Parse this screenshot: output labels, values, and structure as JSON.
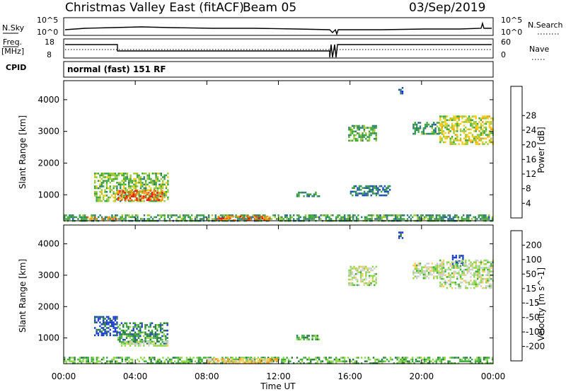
{
  "header": {
    "title": "Christmas Valley East (fitACF)",
    "beam": "Beam 05",
    "date": "03/Sep/2019"
  },
  "top_panels": {
    "nsky_label": "N.Sky",
    "nsearch_label": "N.Search",
    "nsky_ticks": [
      "10^5",
      "10^0"
    ],
    "nsky_right_ticks": [
      "10^5",
      "10^0"
    ],
    "freq_label": "Freq.",
    "freq_unit": "[MHz]",
    "freq_ticks": [
      "18",
      "8"
    ],
    "nave_label": "Nave",
    "nave_ticks": [
      "60",
      "0"
    ],
    "cpid_label": "CPID",
    "cpid_text": "normal (fast) 151 RF"
  },
  "chart_data": [
    {
      "type": "heatmap",
      "name": "power-panel",
      "ylabel": "Slant Range [km]",
      "xlabel": "",
      "xlim": [
        0,
        24
      ],
      "ylim": [
        180,
        4600
      ],
      "yticks": [
        1000,
        2000,
        3000,
        4000
      ],
      "colorbar": {
        "label": "Power [dB]",
        "ticks": [
          "4",
          "8",
          "12",
          "16",
          "20",
          "24",
          "28"
        ],
        "colors": [
          "#0a14e8",
          "#1f4fb0",
          "#2f7f6a",
          "#3da63a",
          "#9cc83a",
          "#f5cc10",
          "#f39a10",
          "#ee5a10",
          "#e01a10"
        ]
      },
      "regions": [
        {
          "t0": 1.7,
          "t1": 5.8,
          "r0": 800,
          "r1": 1700,
          "level": 0.45
        },
        {
          "t0": 3.0,
          "t1": 5.5,
          "r0": 850,
          "r1": 1150,
          "level": 0.85
        },
        {
          "t0": 0.0,
          "t1": 24.0,
          "r0": 200,
          "r1": 380,
          "level": 0.35
        },
        {
          "t0": 8.5,
          "t1": 11.5,
          "r0": 210,
          "r1": 340,
          "level": 0.8
        },
        {
          "t0": 1.2,
          "t1": 3.0,
          "r0": 220,
          "r1": 320,
          "level": 0.75
        },
        {
          "t0": 13.0,
          "t1": 14.3,
          "r0": 950,
          "r1": 1100,
          "level": 0.3
        },
        {
          "t0": 15.9,
          "t1": 17.5,
          "r0": 2700,
          "r1": 3200,
          "level": 0.4
        },
        {
          "t0": 16.0,
          "t1": 18.2,
          "r0": 1000,
          "r1": 1300,
          "level": 0.25
        },
        {
          "t0": 18.7,
          "t1": 18.9,
          "r0": 4200,
          "r1": 4400,
          "level": 0.2
        },
        {
          "t0": 19.5,
          "t1": 21.2,
          "r0": 2900,
          "r1": 3300,
          "level": 0.35
        },
        {
          "t0": 21.0,
          "t1": 24.0,
          "r0": 2600,
          "r1": 3500,
          "level": 0.55
        }
      ]
    },
    {
      "type": "heatmap",
      "name": "velocity-panel",
      "ylabel": "Slant Range [km]",
      "xlabel": "Time UT",
      "xlim": [
        0,
        24
      ],
      "ylim": [
        180,
        4600
      ],
      "xticks": [
        "00:00",
        "04:00",
        "08:00",
        "12:00",
        "16:00",
        "20:00",
        "00:00"
      ],
      "yticks": [
        1000,
        2000,
        3000,
        4000
      ],
      "colorbar": {
        "label": "Velocity [m s^-1]",
        "ticks": [
          "200",
          "100",
          "50",
          "15",
          "-15",
          "-50",
          "-100",
          "-200"
        ],
        "colors": [
          "#1a3fc8",
          "#2a7a45",
          "#3fae3f",
          "#8fd84a",
          "#cfcfcf",
          "#f5cc60",
          "#f39a10",
          "#ee5a10",
          "#e01a10"
        ]
      },
      "regions": [
        {
          "t0": 1.7,
          "t1": 3.0,
          "r0": 1100,
          "r1": 1700,
          "level": 0.05
        },
        {
          "t0": 3.0,
          "t1": 5.8,
          "r0": 800,
          "r1": 1500,
          "level": 0.22
        },
        {
          "t0": 3.2,
          "t1": 5.8,
          "r0": 780,
          "r1": 900,
          "level": 0.45
        },
        {
          "t0": 0.0,
          "t1": 24.0,
          "r0": 200,
          "r1": 400,
          "level": 0.3
        },
        {
          "t0": 8.0,
          "t1": 12.0,
          "r0": 200,
          "r1": 360,
          "level": 0.62
        },
        {
          "t0": 13.0,
          "t1": 14.3,
          "r0": 950,
          "r1": 1100,
          "level": 0.28
        },
        {
          "t0": 15.9,
          "t1": 17.5,
          "r0": 2700,
          "r1": 3300,
          "level": 0.45
        },
        {
          "t0": 18.7,
          "t1": 18.9,
          "r0": 4200,
          "r1": 4450,
          "level": 0.02
        },
        {
          "t0": 19.5,
          "t1": 21.2,
          "r0": 2900,
          "r1": 3400,
          "level": 0.45
        },
        {
          "t0": 21.7,
          "t1": 22.3,
          "r0": 3350,
          "r1": 3650,
          "level": 0.02
        },
        {
          "t0": 21.0,
          "t1": 24.0,
          "r0": 2600,
          "r1": 3500,
          "level": 0.45
        }
      ]
    }
  ]
}
